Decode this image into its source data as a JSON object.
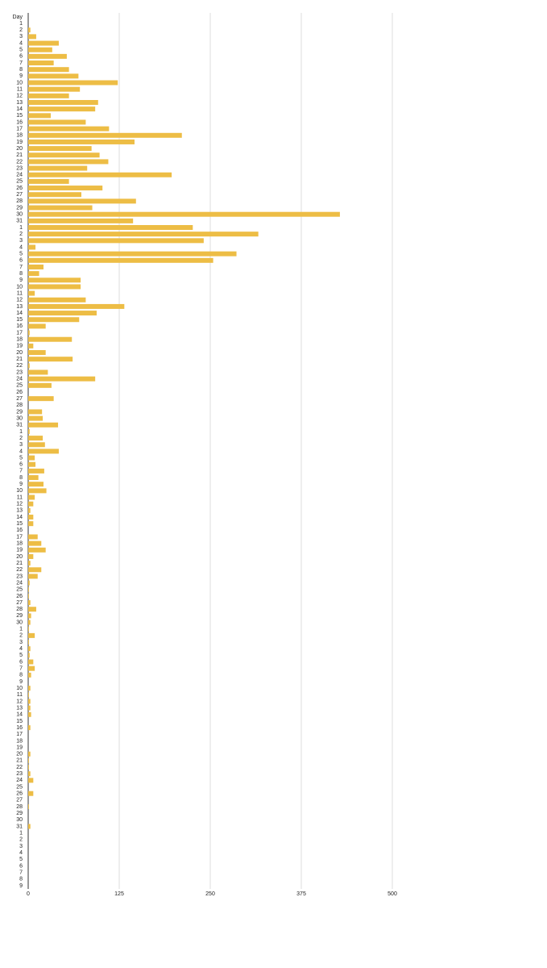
{
  "chart_data": {
    "type": "barh",
    "y_label": "Day",
    "categories": [
      "1",
      "2",
      "3",
      "4",
      "5",
      "6",
      "7",
      "8",
      "9",
      "10",
      "11",
      "12",
      "13",
      "14",
      "15",
      "16",
      "17",
      "18",
      "19",
      "20",
      "21",
      "22",
      "23",
      "24",
      "25",
      "26",
      "27",
      "28",
      "29",
      "30",
      "31",
      "1",
      "2",
      "3",
      "4",
      "5",
      "6",
      "7",
      "8",
      "9",
      "10",
      "11",
      "12",
      "13",
      "14",
      "15",
      "16",
      "17",
      "18",
      "19",
      "20",
      "21",
      "22",
      "23",
      "24",
      "25",
      "26",
      "27",
      "28",
      "29",
      "30",
      "31",
      "1",
      "2",
      "3",
      "4",
      "5",
      "6",
      "7",
      "8",
      "9",
      "10",
      "11",
      "12",
      "13",
      "14",
      "15",
      "16",
      "17",
      "18",
      "19",
      "20",
      "21",
      "22",
      "23",
      "24",
      "25",
      "26",
      "27",
      "28",
      "29",
      "30",
      "1",
      "2",
      "3",
      "4",
      "5",
      "6",
      "7",
      "8",
      "9",
      "10",
      "11",
      "12",
      "13",
      "14",
      "15",
      "16",
      "17",
      "18",
      "19",
      "20",
      "21",
      "22",
      "23",
      "24",
      "25",
      "26",
      "27",
      "28",
      "29",
      "30",
      "31",
      "1",
      "2",
      "3",
      "4",
      "5",
      "6",
      "7",
      "8",
      "9"
    ],
    "values": [
      0,
      3,
      11,
      42,
      33,
      53,
      35,
      56,
      69,
      123,
      71,
      56,
      96,
      92,
      31,
      79,
      111,
      211,
      146,
      87,
      98,
      110,
      81,
      197,
      56,
      102,
      73,
      148,
      88,
      428,
      144,
      226,
      316,
      241,
      10,
      286,
      254,
      21,
      15,
      72,
      72,
      9,
      79,
      132,
      94,
      70,
      24,
      2,
      60,
      7,
      24,
      61,
      2,
      27,
      92,
      32,
      0,
      35,
      0,
      19,
      20,
      41,
      2,
      20,
      23,
      42,
      9,
      10,
      22,
      14,
      21,
      25,
      9,
      7,
      3,
      7,
      7,
      0,
      13,
      18,
      24,
      7,
      3,
      18,
      13,
      2,
      1,
      1,
      3,
      11,
      4,
      3,
      1,
      9,
      1,
      3,
      2,
      7,
      9,
      4,
      0,
      3,
      1,
      3,
      3,
      4,
      0,
      3,
      0,
      0,
      0,
      3,
      1,
      1,
      3,
      7,
      0,
      7,
      0,
      1,
      0,
      0,
      3,
      0,
      0,
      0,
      0,
      0,
      0,
      0,
      0,
      0
    ],
    "color": "#edbd45",
    "xlim": [
      0,
      500
    ],
    "xticks": [
      0,
      125,
      250,
      375,
      500
    ],
    "grid": true
  }
}
